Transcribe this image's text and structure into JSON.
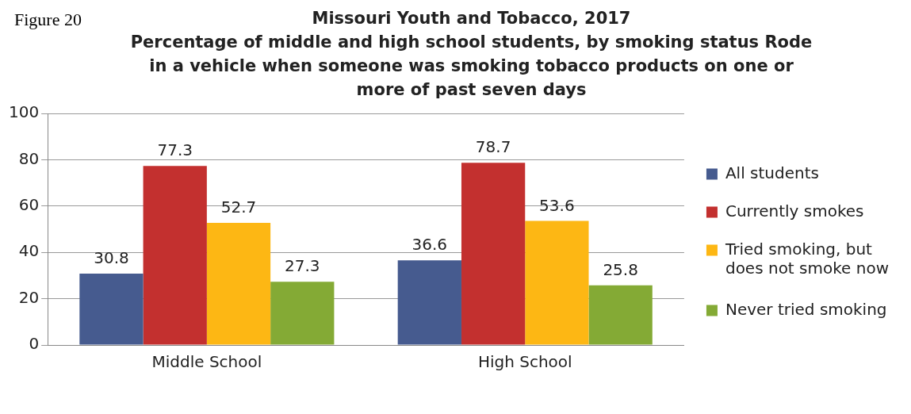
{
  "chart_data": {
    "type": "bar",
    "title": "Missouri Youth and Tobacco, 2017",
    "subtitle": "Percentage of middle and high school students, by smoking status Rode in a vehicle when someone was smoking tobacco products on one or more of past seven days",
    "annotations": [
      "Figure 20"
    ],
    "categories": [
      "Middle School",
      "High School"
    ],
    "series": [
      {
        "name": "All students",
        "color": "#465b8f",
        "values": [
          30.8,
          36.6
        ]
      },
      {
        "name": "Currently smokes",
        "color": "#c3302f",
        "values": [
          77.3,
          78.7
        ]
      },
      {
        "name": "Tried smoking, but does not smoke now",
        "color": "#fdb714",
        "values": [
          52.7,
          53.6
        ]
      },
      {
        "name": "Never tried smoking",
        "color": "#84aa35",
        "values": [
          27.3,
          25.8
        ]
      }
    ],
    "ylim": [
      0,
      100
    ],
    "yticks": [
      0,
      20,
      40,
      60,
      80,
      100
    ],
    "grid": "y",
    "legend": "right",
    "data_labels": true
  }
}
